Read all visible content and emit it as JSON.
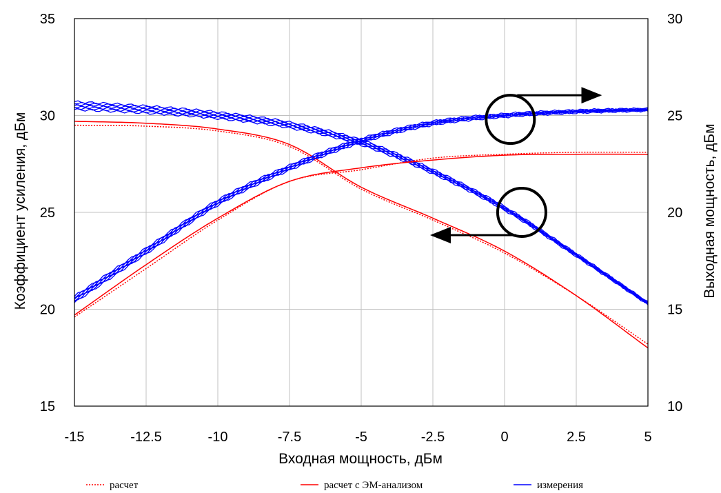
{
  "chart_data": {
    "type": "line",
    "title": "",
    "xlabel": "Входная мощность, дБм",
    "ylabel_left": "Коэффициент усиления, дБм",
    "ylabel_right": "Выходная мощность, дБм",
    "xlim": [
      -15,
      5
    ],
    "ylim_left": [
      15,
      35
    ],
    "ylim_right": [
      10,
      30
    ],
    "x_ticks": [
      "-15",
      "-12.5",
      "-10",
      "-7.5",
      "-5",
      "-2.5",
      "0",
      "2.5",
      "5"
    ],
    "y_left_ticks": [
      "15",
      "20",
      "25",
      "30",
      "35"
    ],
    "y_right_ticks": [
      "10",
      "15",
      "20",
      "25",
      "30"
    ],
    "grid": true,
    "legend_position": "bottom",
    "colors": {
      "calc": "#ff0000",
      "calc_em": "#ff0000",
      "meas": "#0000ff",
      "annotation": "#000000",
      "grid": "#c0c0c0"
    },
    "legend": [
      {
        "label": "расчет",
        "style": "dotted",
        "color": "#ff0000"
      },
      {
        "label": "расчет с ЭМ-анализом",
        "style": "solid",
        "color": "#ff0000"
      },
      {
        "label": "измерения",
        "style": "solid",
        "color": "#0000ff"
      }
    ],
    "x": [
      -15,
      -12.5,
      -10,
      -7.5,
      -5,
      -2.5,
      0,
      2.5,
      5
    ],
    "series": [
      {
        "group": "gain",
        "axis": "left",
        "legend": "расчет",
        "values": [
          29.5,
          29.45,
          29.2,
          28.4,
          26.2,
          24.6,
          22.9,
          20.7,
          18.2
        ]
      },
      {
        "group": "gain",
        "axis": "left",
        "legend": "расчет с ЭМ-анализом",
        "values": [
          29.7,
          29.6,
          29.3,
          28.5,
          26.3,
          24.7,
          23.0,
          20.7,
          18.0
        ]
      },
      {
        "group": "gain",
        "axis": "left",
        "legend": "измерения",
        "values": [
          30.5,
          30.3,
          30.0,
          29.5,
          28.6,
          27.1,
          25.2,
          22.8,
          20.3
        ]
      },
      {
        "group": "pout",
        "axis": "right",
        "legend": "расчет",
        "values": [
          14.6,
          17.1,
          19.6,
          21.6,
          22.2,
          22.8,
          23.0,
          23.1,
          23.1
        ]
      },
      {
        "group": "pout",
        "axis": "right",
        "legend": "расчет с ЭМ-анализом",
        "values": [
          14.7,
          17.3,
          19.7,
          21.6,
          22.3,
          22.7,
          22.95,
          23.0,
          23.0
        ]
      },
      {
        "group": "pout",
        "axis": "right",
        "legend": "измерения",
        "values": [
          15.5,
          18.0,
          20.5,
          22.3,
          23.7,
          24.6,
          25.0,
          25.2,
          25.3
        ]
      }
    ],
    "annotations": [
      {
        "shape": "circle-with-arrow",
        "target": "pout",
        "arrow": "right",
        "at": [
          0.2,
          24.8
        ]
      },
      {
        "shape": "circle-with-arrow",
        "target": "gain",
        "arrow": "left",
        "at": [
          0.6,
          25.0
        ]
      }
    ]
  }
}
